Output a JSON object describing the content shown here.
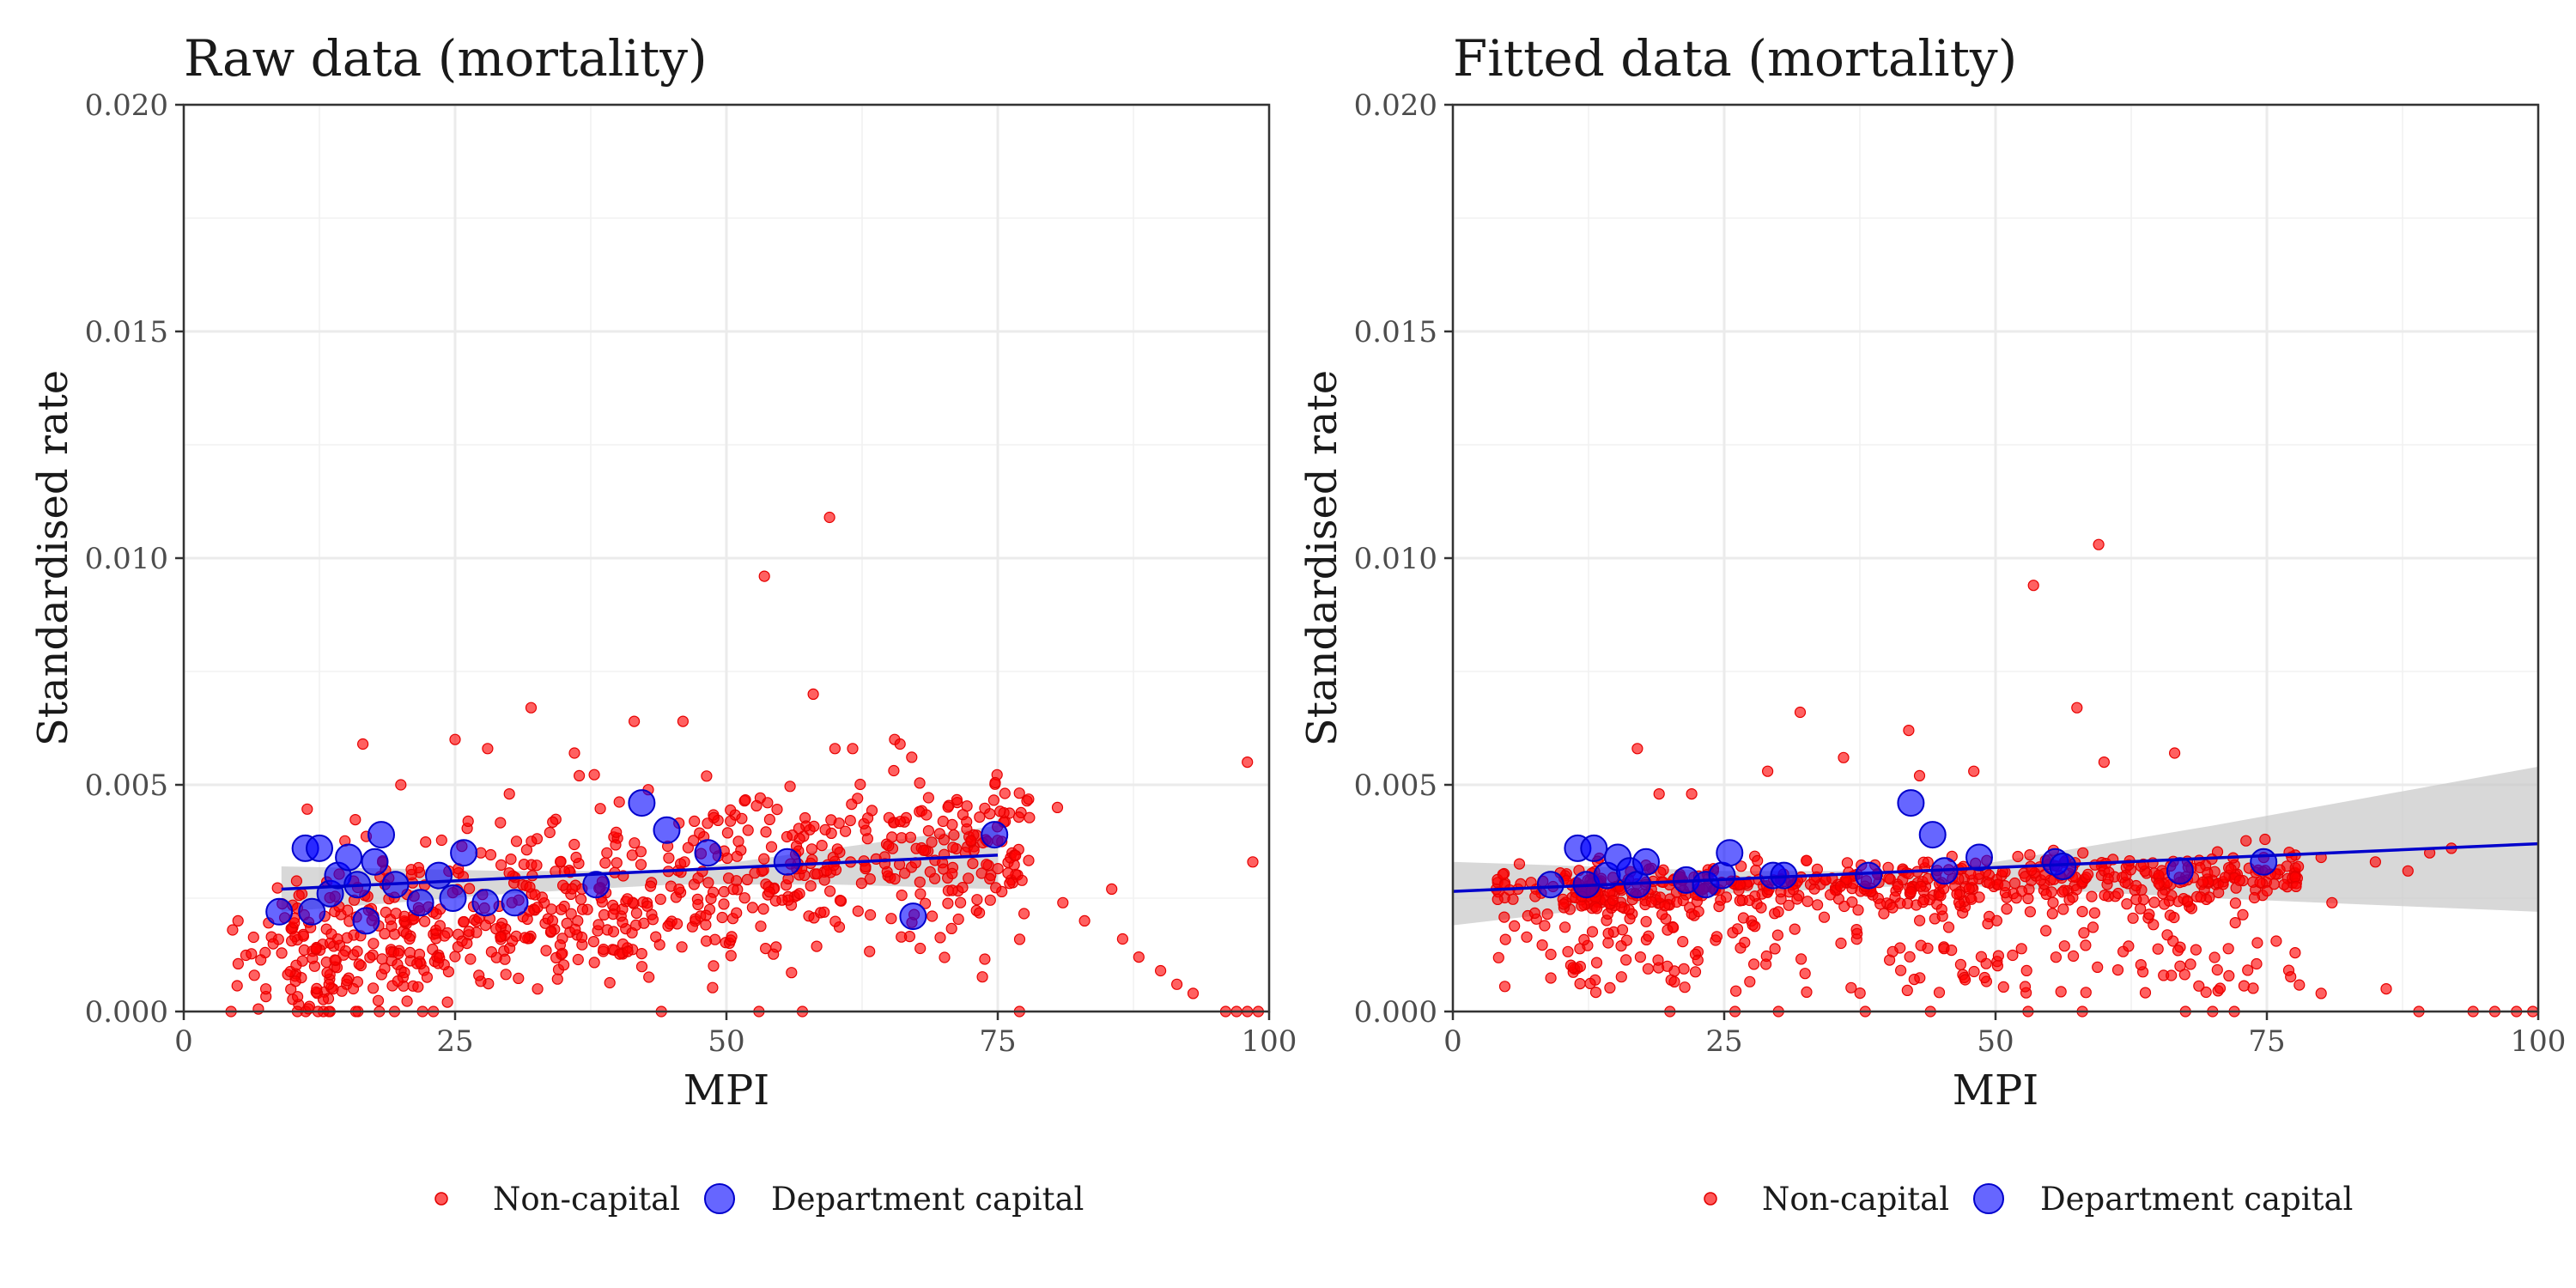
{
  "chart_data": [
    {
      "type": "scatter",
      "title": "Raw data (mortality)",
      "xlabel": "MPI",
      "ylabel": "Standardised rate",
      "xlim": [
        0,
        100
      ],
      "ylim": [
        0,
        0.02
      ],
      "xticks": [
        0,
        25,
        50,
        75,
        100
      ],
      "yticks": [
        0.0,
        0.005,
        0.01,
        0.015,
        0.02
      ],
      "xtick_labels": [
        "0",
        "25",
        "50",
        "75",
        "100"
      ],
      "ytick_labels": [
        "0.000",
        "0.005",
        "0.010",
        "0.015",
        "0.020"
      ],
      "grid": true,
      "legend_position": "bottom",
      "series": [
        {
          "name": "Non-capital",
          "color": "#ff0000",
          "marker": "small-circle",
          "generated": {
            "seed": 11,
            "count": 760
          },
          "points": [
            [
              59.5,
              0.0109
            ],
            [
              53.5,
              0.0096
            ],
            [
              58,
              0.007
            ],
            [
              32,
              0.0067
            ],
            [
              41.5,
              0.0064
            ],
            [
              46,
              0.0064
            ],
            [
              65.5,
              0.006
            ],
            [
              66,
              0.0059
            ],
            [
              25,
              0.006
            ],
            [
              16.5,
              0.0059
            ],
            [
              28,
              0.0058
            ],
            [
              60,
              0.0058
            ],
            [
              36,
              0.0057
            ],
            [
              98,
              0.0055
            ],
            [
              98.5,
              0.0033
            ],
            [
              80.5,
              0.0045
            ],
            [
              85.5,
              0.0027
            ],
            [
              81,
              0.0024
            ],
            [
              83,
              0.002
            ],
            [
              86.5,
              0.0016
            ],
            [
              88,
              0.0012
            ],
            [
              90,
              0.0009
            ],
            [
              91.5,
              0.0006
            ],
            [
              93,
              0.0004
            ],
            [
              96,
              0.0
            ],
            [
              97,
              0.0
            ],
            [
              98,
              0.0
            ],
            [
              99,
              0.0
            ],
            [
              23,
              0.0
            ],
            [
              44,
              0.0
            ],
            [
              53,
              0.0
            ],
            [
              57,
              0.0
            ],
            [
              77,
              0.0
            ],
            [
              5,
              0.002
            ],
            [
              4.5,
              0.0018
            ],
            [
              6.5,
              0.0008
            ],
            [
              7.5,
              0.0013
            ],
            [
              15,
              0.0006
            ],
            [
              20,
              0.005
            ],
            [
              30,
              0.0048
            ]
          ]
        },
        {
          "name": "Department capital",
          "color": "#0000ff",
          "marker": "large-circle",
          "points": [
            [
              8.8,
              0.0022
            ],
            [
              11.2,
              0.0036
            ],
            [
              11.8,
              0.0022
            ],
            [
              12.5,
              0.0036
            ],
            [
              13.5,
              0.0026
            ],
            [
              14.2,
              0.003
            ],
            [
              15.2,
              0.0034
            ],
            [
              16,
              0.0028
            ],
            [
              16.8,
              0.002
            ],
            [
              17.6,
              0.0033
            ],
            [
              18.2,
              0.0039
            ],
            [
              19.5,
              0.0028
            ],
            [
              21.8,
              0.0024
            ],
            [
              23.5,
              0.003
            ],
            [
              24.8,
              0.0025
            ],
            [
              25.8,
              0.0035
            ],
            [
              27.8,
              0.0024
            ],
            [
              30.5,
              0.0024
            ],
            [
              38,
              0.0028
            ],
            [
              42.2,
              0.0046
            ],
            [
              44.5,
              0.004
            ],
            [
              48.3,
              0.0035
            ],
            [
              55.6,
              0.0033
            ],
            [
              67.2,
              0.0021
            ],
            [
              74.7,
              0.0039
            ]
          ]
        }
      ],
      "trend": {
        "color": "#0000cc",
        "x_range": [
          9,
          75
        ],
        "y_at_start": 0.0027,
        "y_at_end": 0.00345
      },
      "confidence_band": {
        "color": "#c8c8c8",
        "points": [
          [
            9,
            0.0022,
            0.0032
          ],
          [
            30,
            0.0026,
            0.0031
          ],
          [
            45,
            0.0028,
            0.0031
          ],
          [
            60,
            0.0028,
            0.0036
          ],
          [
            75,
            0.0027,
            0.0041
          ]
        ]
      }
    },
    {
      "type": "scatter",
      "title": "Fitted data (mortality)",
      "xlabel": "MPI",
      "ylabel": "Standardised rate",
      "xlim": [
        0,
        100
      ],
      "ylim": [
        0,
        0.02
      ],
      "xticks": [
        0,
        25,
        50,
        75,
        100
      ],
      "yticks": [
        0.0,
        0.005,
        0.01,
        0.015,
        0.02
      ],
      "xtick_labels": [
        "0",
        "25",
        "50",
        "75",
        "100"
      ],
      "ytick_labels": [
        "0.000",
        "0.005",
        "0.010",
        "0.015",
        "0.020"
      ],
      "grid": true,
      "legend_position": "bottom",
      "series": [
        {
          "name": "Non-capital",
          "color": "#ff0000",
          "marker": "small-circle",
          "generated": {
            "seed": 23,
            "count": 760
          },
          "points": [
            [
              59.5,
              0.0103
            ],
            [
              53.5,
              0.0094
            ],
            [
              57.5,
              0.0067
            ],
            [
              32,
              0.0066
            ],
            [
              66.5,
              0.0057
            ],
            [
              42,
              0.0062
            ],
            [
              17,
              0.0058
            ],
            [
              60,
              0.0055
            ],
            [
              36,
              0.0056
            ],
            [
              43,
              0.0052
            ],
            [
              48,
              0.0053
            ],
            [
              29,
              0.0053
            ],
            [
              19,
              0.0048
            ],
            [
              22,
              0.0048
            ],
            [
              4,
              0.0027
            ],
            [
              6,
              0.0027
            ],
            [
              90,
              0.0035
            ],
            [
              92,
              0.0036
            ],
            [
              85,
              0.0033
            ],
            [
              80,
              0.0034
            ],
            [
              88,
              0.0031
            ],
            [
              81,
              0.0024
            ],
            [
              86,
              0.0005
            ],
            [
              80,
              0.0004
            ],
            [
              94,
              0.0
            ],
            [
              96,
              0.0
            ],
            [
              98,
              0.0
            ],
            [
              99.5,
              0.0
            ],
            [
              70,
              0.0
            ],
            [
              67.5,
              0.0
            ],
            [
              72,
              0.0
            ],
            [
              20,
              0.0
            ],
            [
              26,
              0.0
            ],
            [
              30,
              0.0
            ],
            [
              38,
              0.0
            ],
            [
              44,
              0.0
            ],
            [
              53,
              0.0
            ],
            [
              58,
              0.0
            ],
            [
              89,
              0.0
            ],
            [
              67,
              0.001
            ]
          ]
        },
        {
          "name": "Department capital",
          "color": "#0000ff",
          "marker": "large-circle",
          "points": [
            [
              9,
              0.0028
            ],
            [
              11.5,
              0.0036
            ],
            [
              12.3,
              0.0028
            ],
            [
              13,
              0.0036
            ],
            [
              14.2,
              0.003
            ],
            [
              15.2,
              0.0034
            ],
            [
              16.3,
              0.0031
            ],
            [
              17,
              0.0028
            ],
            [
              17.8,
              0.0033
            ],
            [
              21.5,
              0.0029
            ],
            [
              23.3,
              0.0028
            ],
            [
              24.8,
              0.003
            ],
            [
              25.5,
              0.0035
            ],
            [
              29.5,
              0.003
            ],
            [
              30.5,
              0.003
            ],
            [
              38.3,
              0.003
            ],
            [
              42.2,
              0.0046
            ],
            [
              44.2,
              0.0039
            ],
            [
              45.3,
              0.0031
            ],
            [
              48.5,
              0.0034
            ],
            [
              55.5,
              0.0033
            ],
            [
              56.2,
              0.0032
            ],
            [
              67,
              0.0031
            ],
            [
              74.7,
              0.0033
            ]
          ]
        }
      ],
      "trend": {
        "color": "#0000cc",
        "x_range": [
          0,
          100
        ],
        "y_at_start": 0.00265,
        "y_at_end": 0.0037
      },
      "confidence_band": {
        "color": "#c8c8c8",
        "points": [
          [
            0,
            0.0019,
            0.0033
          ],
          [
            25,
            0.0026,
            0.0031
          ],
          [
            45,
            0.0028,
            0.0031
          ],
          [
            70,
            0.0025,
            0.0041
          ],
          [
            100,
            0.0022,
            0.0054
          ]
        ]
      }
    }
  ],
  "legend": {
    "items": [
      {
        "label": "Non-capital",
        "color": "#ff0000",
        "marker": "small-circle"
      },
      {
        "label": "Department capital",
        "color": "#0000ff",
        "marker": "large-circle"
      }
    ]
  }
}
